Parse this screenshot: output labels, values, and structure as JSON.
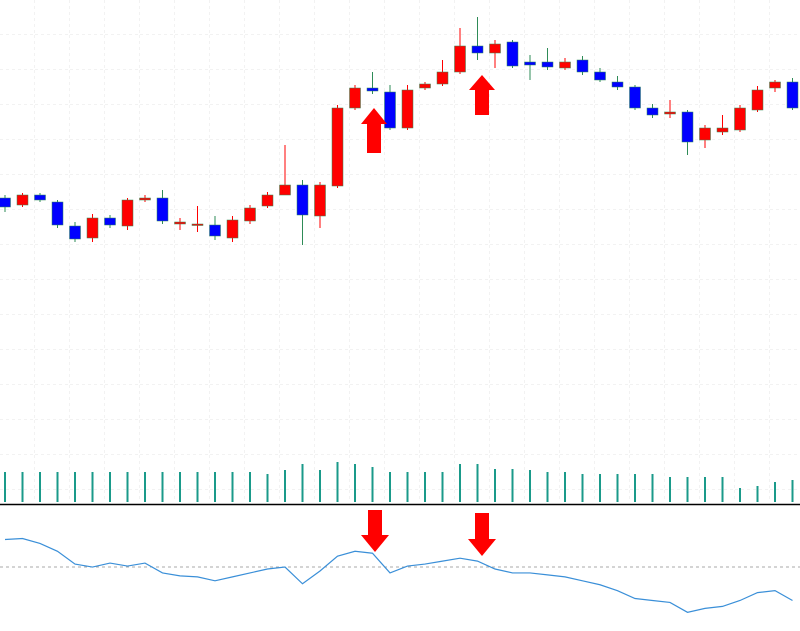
{
  "chart_data": [
    {
      "type": "candlestick",
      "up_color": "#ff0000",
      "down_color": "#0000ff",
      "wick_color": "#2e8b57",
      "ylim": [
        -140,
        300
      ],
      "grid": true,
      "open": [
        102,
        95,
        105,
        98,
        74,
        62,
        82,
        74,
        100,
        102,
        76,
        75,
        75,
        62,
        79,
        94,
        105,
        115,
        84,
        114,
        192,
        212,
        208,
        172,
        212,
        216,
        228,
        254,
        247,
        258,
        238,
        238,
        232,
        240,
        228,
        218,
        213,
        192,
        186,
        188,
        160,
        168,
        170,
        190,
        212,
        218
      ],
      "high": [
        105,
        107,
        107,
        100,
        78,
        86,
        85,
        102,
        105,
        110,
        82,
        94,
        84,
        84,
        95,
        108,
        155,
        120,
        118,
        195,
        215,
        228,
        215,
        215,
        218,
        240,
        272,
        283,
        260,
        260,
        245,
        252,
        242,
        244,
        232,
        224,
        215,
        196,
        200,
        190,
        175,
        185,
        195,
        214,
        220,
        222
      ],
      "low": [
        88,
        93,
        98,
        72,
        58,
        58,
        72,
        70,
        98,
        76,
        70,
        68,
        60,
        58,
        76,
        92,
        105,
        55,
        72,
        112,
        190,
        206,
        170,
        170,
        210,
        214,
        226,
        240,
        232,
        232,
        220,
        230,
        230,
        225,
        218,
        210,
        190,
        182,
        182,
        145,
        152,
        165,
        168,
        188,
        208,
        190
      ],
      "close": [
        93,
        105,
        100,
        75,
        61,
        82,
        75,
        100,
        102,
        79,
        78,
        76,
        64,
        80,
        92,
        105,
        115,
        85,
        115,
        192,
        212,
        209,
        172,
        210,
        216,
        228,
        254,
        247,
        256,
        234,
        235,
        233,
        238,
        228,
        220,
        213,
        192,
        185,
        188,
        158,
        172,
        172,
        192,
        210,
        218,
        192
      ]
    },
    {
      "type": "bar",
      "color": "#1a9a8a",
      "ylim": [
        0,
        50
      ],
      "values": [
        30,
        30,
        30,
        30,
        30,
        30,
        30,
        30,
        30,
        30,
        30,
        30,
        30,
        30,
        30,
        28,
        32,
        38,
        32,
        40,
        38,
        35,
        30,
        30,
        30,
        30,
        38,
        38,
        33,
        33,
        32,
        30,
        30,
        28,
        28,
        28,
        28,
        28,
        25,
        25,
        25,
        25,
        14,
        16,
        20,
        22
      ]
    },
    {
      "type": "line",
      "color": "#3a8fd8",
      "ylim": [
        0,
        126
      ],
      "reference": 65,
      "values": [
        93,
        94,
        89,
        81,
        68,
        65,
        69,
        66,
        69,
        59,
        56,
        55,
        51,
        55,
        59,
        63,
        65,
        48,
        61,
        76,
        81,
        79,
        59,
        66,
        68,
        71,
        74,
        71,
        63,
        59,
        59,
        57,
        55,
        51,
        47,
        41,
        33,
        31,
        29,
        19,
        23,
        25,
        31,
        39,
        41,
        31
      ]
    }
  ]
}
